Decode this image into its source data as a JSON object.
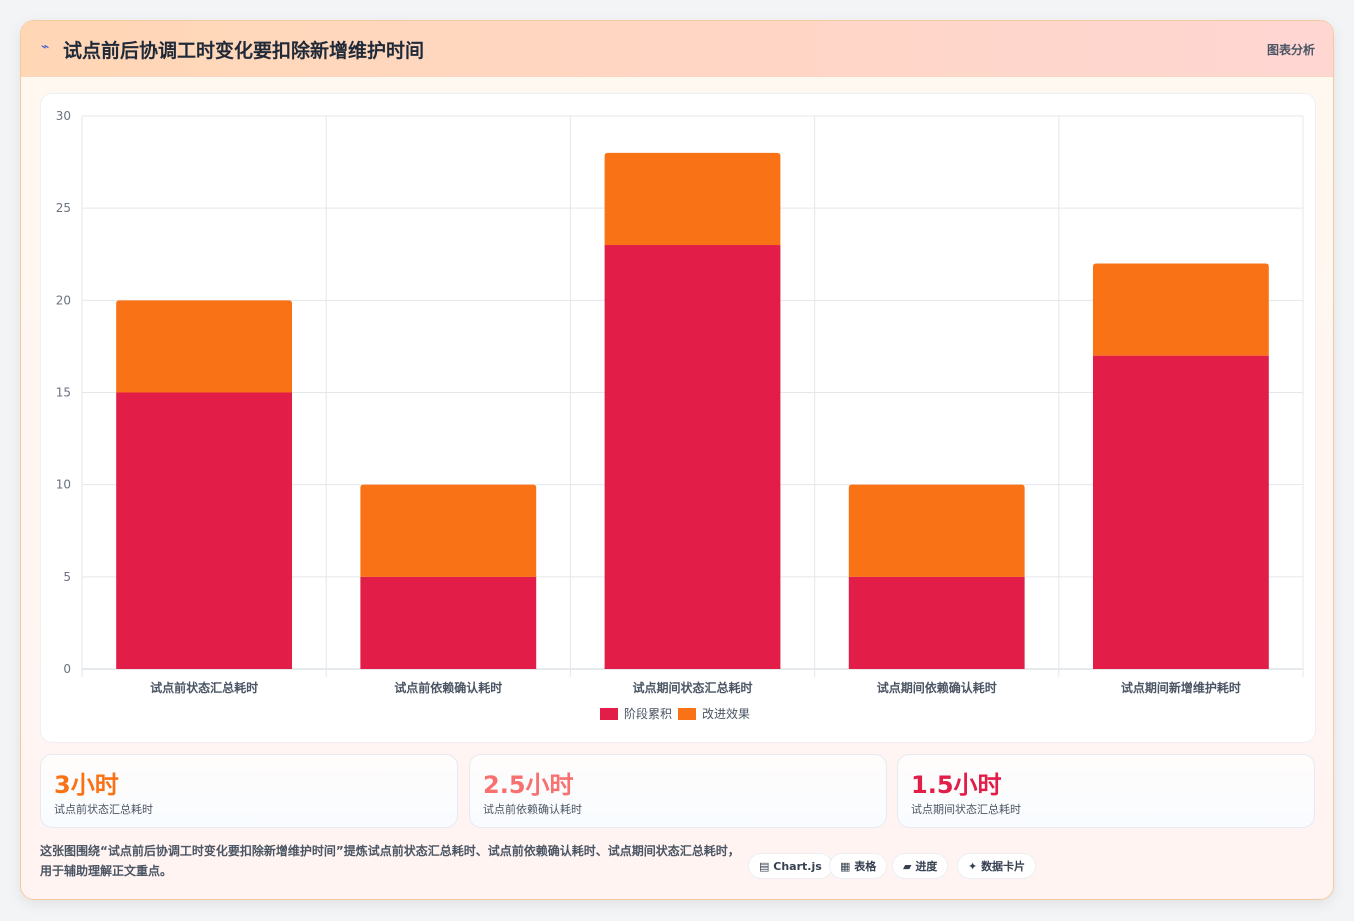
{
  "header": {
    "icon": "chart-line-icon",
    "title": "试点前后协调工时变化要扣除新增维护时间",
    "right_label": "图表分析"
  },
  "colors": {
    "series1": "#e11d48",
    "series2": "#f97316",
    "stat1": "#f97316",
    "stat2": "#f87171",
    "stat3": "#e11d48"
  },
  "chart_data": {
    "type": "bar",
    "stacked": true,
    "categories": [
      "试点前状态汇总耗时",
      "试点前依赖确认耗时",
      "试点期间状态汇总耗时",
      "试点期间依赖确认耗时",
      "试点期间新增维护耗时"
    ],
    "series": [
      {
        "name": "阶段累积",
        "values": [
          15,
          5,
          23,
          5,
          17
        ]
      },
      {
        "name": "改进效果",
        "values": [
          5,
          5,
          5,
          5,
          5
        ]
      }
    ],
    "yticks": [
      "0",
      "5",
      "10",
      "15",
      "20",
      "25",
      "30"
    ],
    "ylim": [
      0,
      30
    ],
    "grid": true,
    "legend_position": "bottom"
  },
  "stats": [
    {
      "value": "3小时",
      "label": "试点前状态汇总耗时"
    },
    {
      "value": "2.5小时",
      "label": "试点前依赖确认耗时"
    },
    {
      "value": "1.5小时",
      "label": "试点期间状态汇总耗时"
    }
  ],
  "description": "这张图围绕“试点前后协调工时变化要扣除新增维护时间”提炼试点前状态汇总耗时、试点前依赖确认耗时、试点期间状态汇总耗时，用于辅助理解正文重点。",
  "tags": [
    {
      "icon": "▤",
      "label": "Chart.js"
    },
    {
      "icon": "▦",
      "label": "表格"
    },
    {
      "icon": "▰",
      "label": "进度"
    },
    {
      "icon": "✦",
      "label": "数据卡片"
    }
  ]
}
